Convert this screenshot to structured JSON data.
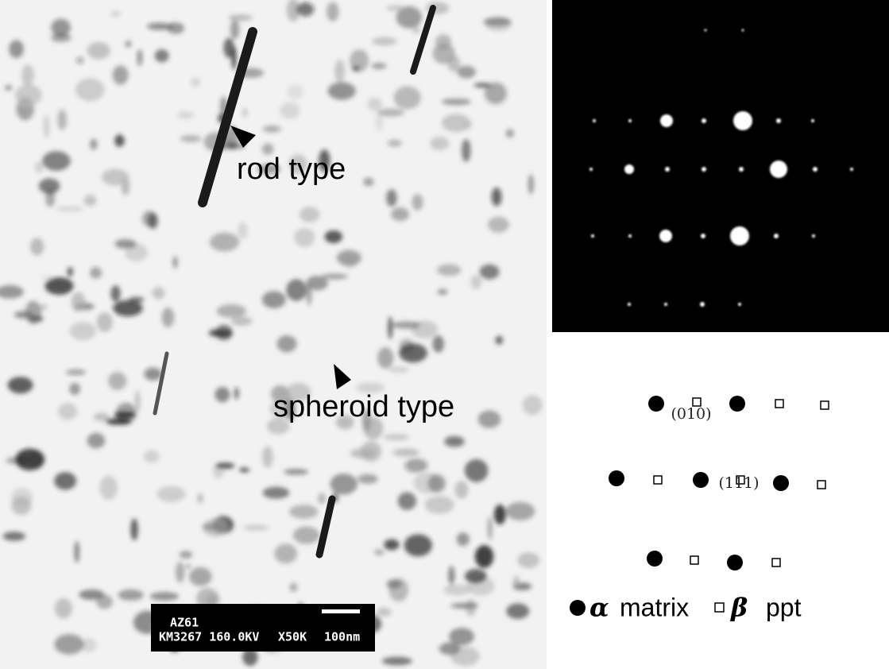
{
  "micrograph": {
    "annotations": [
      "rod type",
      "spheroid type"
    ],
    "scale_bar": {
      "sample": "AZ61",
      "info": "KM3267 160.0KV",
      "magnification": "X50K",
      "length": "100nm"
    }
  },
  "schematic": {
    "labels": [
      "(010)",
      "(111)"
    ],
    "legend": [
      {
        "symbol": "α",
        "label": "matrix"
      },
      {
        "symbol": "β",
        "label": "ppt"
      }
    ]
  }
}
